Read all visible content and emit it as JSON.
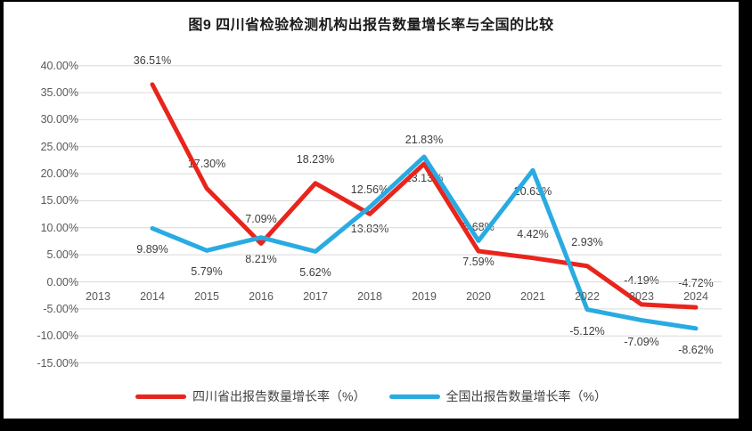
{
  "page": {
    "frame_color": "#000000",
    "background_color": "#ffffff"
  },
  "colors": {
    "sichuan": "#e8251d",
    "national": "#29abe2",
    "gridline": "#d9d9d9",
    "axis_text": "#595959",
    "data_label_text": "#3d3d3d",
    "title_text": "#1a1a1a"
  },
  "chart_data": {
    "type": "line",
    "title": "图9  四川省检验检测机构出报告数量增长率与全国的比较",
    "categories": [
      "2013",
      "2014",
      "2015",
      "2016",
      "2017",
      "2018",
      "2019",
      "2020",
      "2021",
      "2022",
      "2023",
      "2024"
    ],
    "series": [
      {
        "name": "四川省出报告数量增长率（%）",
        "color_key": "sichuan",
        "values": [
          null,
          36.51,
          17.3,
          7.09,
          18.23,
          12.56,
          21.83,
          5.68,
          4.42,
          2.93,
          -4.19,
          -4.72
        ],
        "labels": [
          "",
          "36.51%",
          "17.30%",
          "7.09%",
          "18.23%",
          "12.56%",
          "21.83%",
          "5.68%",
          "4.42%",
          "2.93%",
          "-4.19%",
          "-4.72%"
        ]
      },
      {
        "name": "全国出报告数量增长率（%）",
        "color_key": "national",
        "values": [
          null,
          9.89,
          5.79,
          8.21,
          5.62,
          13.83,
          23.13,
          7.59,
          20.63,
          -5.12,
          -7.09,
          -8.62
        ],
        "labels": [
          "",
          "9.89%",
          "5.79%",
          "8.21%",
          "5.62%",
          "13.83%",
          "23.13%",
          "7.59%",
          "20.63%",
          "-5.12%",
          "-7.09%",
          "-8.62%"
        ]
      }
    ],
    "y_axis": {
      "min": -15,
      "max": 40,
      "step": 5,
      "tick_labels": [
        "40.00%",
        "35.00%",
        "30.00%",
        "25.00%",
        "20.00%",
        "15.00%",
        "10.00%",
        "5.00%",
        "0.00%",
        "-5.00%",
        "-10.00%",
        "-15.00%"
      ]
    },
    "grid": true,
    "legend_position": "bottom"
  }
}
